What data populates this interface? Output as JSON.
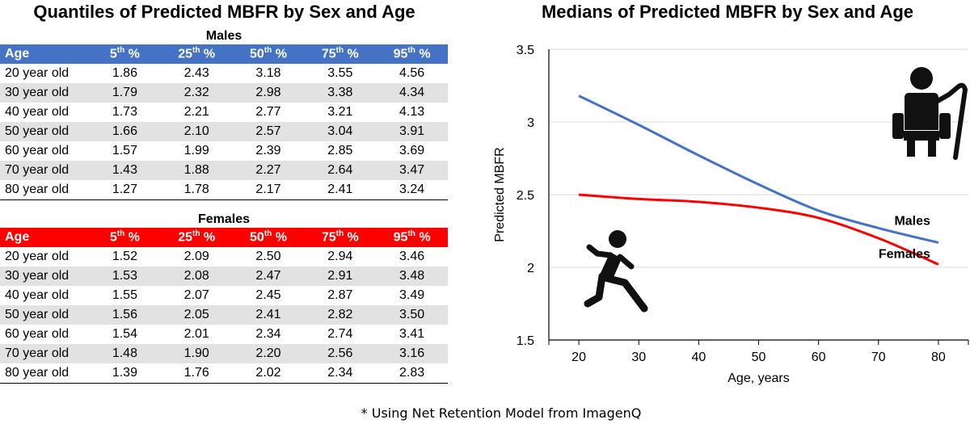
{
  "left_title": "Quantiles of Predicted MBFR by Sex and Age",
  "right_title": "Medians of Predicted MBFR by Sex and Age",
  "footnote": "* Using Net Retention Model from ImagenQ",
  "colors": {
    "males": "#4472c4",
    "females": "#ff0000",
    "stripe": "#e2e2e2"
  },
  "table_headers": [
    {
      "base": "Age",
      "sup": ""
    },
    {
      "base": "5",
      "sup": "th",
      "suffix": " %"
    },
    {
      "base": "25",
      "sup": "th",
      "suffix": " %"
    },
    {
      "base": "50",
      "sup": "th",
      "suffix": " %"
    },
    {
      "base": "75",
      "sup": "th",
      "suffix": " %"
    },
    {
      "base": "95",
      "sup": "th",
      "suffix": " %"
    }
  ],
  "tables": {
    "males": {
      "caption": "Males",
      "rows": [
        [
          "20 year old",
          "1.86",
          "2.43",
          "3.18",
          "3.55",
          "4.56"
        ],
        [
          "30 year old",
          "1.79",
          "2.32",
          "2.98",
          "3.38",
          "4.34"
        ],
        [
          "40 year old",
          "1.73",
          "2.21",
          "2.77",
          "3.21",
          "4.13"
        ],
        [
          "50 year old",
          "1.66",
          "2.10",
          "2.57",
          "3.04",
          "3.91"
        ],
        [
          "60 year old",
          "1.57",
          "1.99",
          "2.39",
          "2.85",
          "3.69"
        ],
        [
          "70 year old",
          "1.43",
          "1.88",
          "2.27",
          "2.64",
          "3.47"
        ],
        [
          "80 year old",
          "1.27",
          "1.78",
          "2.17",
          "2.41",
          "3.24"
        ]
      ]
    },
    "females": {
      "caption": "Females",
      "rows": [
        [
          "20 year old",
          "1.52",
          "2.09",
          "2.50",
          "2.94",
          "3.46"
        ],
        [
          "30 year old",
          "1.53",
          "2.08",
          "2.47",
          "2.91",
          "3.48"
        ],
        [
          "40 year old",
          "1.55",
          "2.07",
          "2.45",
          "2.87",
          "3.49"
        ],
        [
          "50 year old",
          "1.56",
          "2.05",
          "2.41",
          "2.82",
          "3.50"
        ],
        [
          "60 year old",
          "1.54",
          "2.01",
          "2.34",
          "2.74",
          "3.41"
        ],
        [
          "70 year old",
          "1.48",
          "1.90",
          "2.20",
          "2.56",
          "3.16"
        ],
        [
          "80 year old",
          "1.39",
          "1.76",
          "2.02",
          "2.34",
          "2.83"
        ]
      ]
    }
  },
  "chart_data": {
    "type": "line",
    "title": "Medians of Predicted MBFR by Sex and Age",
    "xlabel": "Age, years",
    "ylabel": "Predicted MBFR",
    "x": [
      20,
      30,
      40,
      50,
      60,
      70,
      80
    ],
    "xlim": [
      15,
      85
    ],
    "ylim": [
      1.5,
      3.5
    ],
    "xticks": [
      "20",
      "30",
      "40",
      "50",
      "60",
      "70",
      "80"
    ],
    "yticks": [
      "1.5",
      "2",
      "2.5",
      "3",
      "3.5"
    ],
    "grid": "horizontal",
    "series": [
      {
        "name": "Males",
        "values": [
          3.18,
          2.98,
          2.77,
          2.57,
          2.39,
          2.27,
          2.17
        ],
        "color": "#4472c4"
      },
      {
        "name": "Females",
        "values": [
          2.5,
          2.47,
          2.45,
          2.41,
          2.34,
          2.2,
          2.02
        ],
        "color": "#ff0000"
      }
    ],
    "icons": [
      "seated-elderly-person-icon",
      "running-person-icon"
    ]
  }
}
